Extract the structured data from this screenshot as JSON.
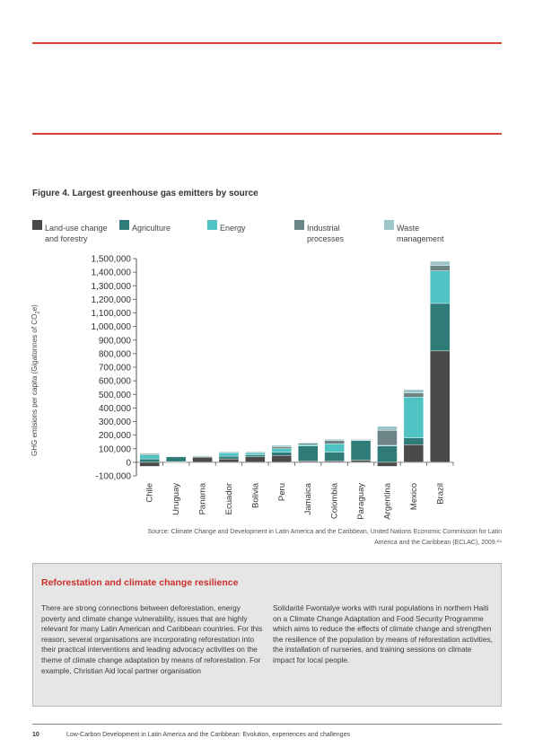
{
  "figure": {
    "title": "Figure 4. Largest greenhouse gas emitters by source"
  },
  "legend": [
    {
      "label": "Land-use change\nand forestry",
      "color": "#4a4a4a"
    },
    {
      "label": "Agriculture",
      "color": "#2f7b77"
    },
    {
      "label": "Energy",
      "color": "#4fc3c3"
    },
    {
      "label": "Industrial\nprocesses",
      "color": "#6e8588"
    },
    {
      "label": "Waste\nmanagement",
      "color": "#9cc6c8"
    }
  ],
  "chart_data": {
    "type": "bar",
    "stacked": true,
    "ylabel": "GHG emisions per capita (Gigatonnes of CO2e)",
    "ylim": [
      -100000,
      1500000
    ],
    "yticks": [
      "1,500,000",
      "1,400,000",
      "1,300,000",
      "1,200,000",
      "1,100,000",
      "1,000,000",
      "900,000",
      "800,000",
      "700,000",
      "600,000",
      "500,000",
      "400,000",
      "300,000",
      "200,000",
      "100,000",
      "0",
      "-100,000"
    ],
    "ytick_values": [
      1500000,
      1400000,
      1300000,
      1200000,
      1100000,
      1000000,
      900000,
      800000,
      700000,
      600000,
      500000,
      400000,
      300000,
      200000,
      100000,
      0,
      -100000
    ],
    "categories": [
      "Chile",
      "Uruguay",
      "Panama",
      "Ecuador",
      "Bolivia",
      "Peru",
      "Jamaica",
      "Colombia",
      "Paraguay",
      "Argentina",
      "Mexico",
      "Brazil"
    ],
    "series": [
      {
        "name": "Land-use change and forestry",
        "color": "#4a4a4a",
        "values": [
          -30000,
          5000,
          38000,
          25000,
          40000,
          50000,
          10000,
          10000,
          15000,
          -30000,
          130000,
          820000
        ]
      },
      {
        "name": "Agriculture",
        "color": "#2f7b77",
        "values": [
          25000,
          35000,
          5000,
          20000,
          15000,
          25000,
          110000,
          65000,
          145000,
          120000,
          50000,
          350000
        ]
      },
      {
        "name": "Energy",
        "color": "#4fc3c3",
        "values": [
          30000,
          3000,
          3000,
          25000,
          15000,
          25000,
          10000,
          60000,
          5000,
          5000,
          300000,
          240000
        ]
      },
      {
        "name": "Industrial processes",
        "color": "#6e8588",
        "values": [
          8000,
          2000,
          2000,
          5000,
          5000,
          15000,
          10000,
          25000,
          5000,
          110000,
          30000,
          40000
        ]
      },
      {
        "name": "Waste management",
        "color": "#9cc6c8",
        "values": [
          5000,
          2000,
          2000,
          5000,
          5000,
          10000,
          5000,
          10000,
          3000,
          30000,
          25000,
          30000
        ]
      }
    ]
  },
  "source": {
    "text": "Source: Climate Change and Development in Latin America and the Caribbean, United Nations Economic Commission for Latin America and the Caribbean (ECLAC), 2009.²⁴"
  },
  "box": {
    "title": "Reforestation and climate change resilience",
    "col1": "There are strong connections between deforestation, energy poverty and climate change vulnerability, issues that are highly relevant for many Latin American and Caribbean countries. For this reason, several organisations are incorporating reforestation into their practical interventions and leading advocacy activities on the theme of climate change adaptation by means of reforestation. For example, Christian Aid local partner organisation",
    "col2": "Solidarité Fwontalye works with rural populations in northern Haiti on a Climate Change Adaptation and Food Security Programme which aims to reduce the effects of climate change and strengthen the resilience of the population by means of reforestation activities, the installation of nurseries, and training sessions on climate impact for local people."
  },
  "footer": {
    "page": "10",
    "text": "Low-Carbon Development in Latin America and the Caribbean: Evolution, experiences and challenges"
  }
}
